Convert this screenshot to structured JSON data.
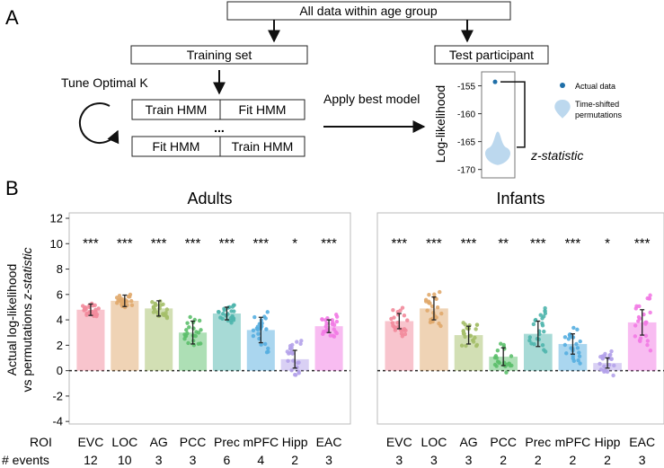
{
  "panel_a": {
    "label": "A",
    "top_box": "All data within age group",
    "training_box": "Training set",
    "test_box": "Test participant",
    "tune_label": "Tune Optimal K",
    "grid": {
      "r1c1": "Train HMM",
      "r1c2": "Fit HMM",
      "dots": "...",
      "r2c1": "Fit HMM",
      "r2c2": "Train HMM"
    },
    "apply_label": "Apply best model",
    "inset": {
      "ylabel": "Log-likelihood",
      "yticks": [
        -155,
        -160,
        -165,
        -170
      ],
      "ylim": [
        -171.5,
        -152.5
      ],
      "actual_value": -154.3,
      "zstat_label": "z-statistic",
      "legend": {
        "actual": "Actual data",
        "perm_line1": "Time-shifted",
        "perm_line2": "permutations"
      },
      "colors": {
        "actual": "#1f6fa8",
        "perm": "#bcd8ee"
      }
    }
  },
  "panel_b": {
    "label": "B",
    "ylabel_line1": "Actual log-likelihood",
    "ylabel_line2": "vs permutations",
    "ylabel_z": "z-statistic",
    "row_roi_label": "ROI",
    "row_events_label": "# events"
  },
  "chart_data": [
    {
      "type": "bar",
      "title": "Adults",
      "ylabel": "Actual log-likelihood vs permutations z-statistic",
      "ylim": [
        -4.2,
        12
      ],
      "yticks": [
        -4,
        -2,
        0,
        2,
        4,
        6,
        8,
        10,
        12
      ],
      "categories": [
        "EVC",
        "LOC",
        "AG",
        "PCC",
        "Prec",
        "mPFC",
        "Hipp",
        "EAC"
      ],
      "values": [
        4.8,
        5.5,
        4.9,
        3.0,
        4.5,
        3.2,
        0.9,
        3.5
      ],
      "error": [
        0.45,
        0.45,
        0.6,
        0.9,
        0.5,
        1.0,
        0.7,
        0.5
      ],
      "significance": [
        "***",
        "***",
        "***",
        "***",
        "***",
        "***",
        "*",
        "***"
      ],
      "events": [
        12,
        10,
        3,
        3,
        6,
        4,
        2,
        3
      ],
      "points_spread": [
        0.6,
        0.6,
        0.8,
        1.6,
        0.7,
        1.7,
        1.5,
        0.9
      ],
      "colors": [
        "#f28a9b",
        "#e0a86b",
        "#a5bf6a",
        "#5cbf6c",
        "#4fb5ad",
        "#55aee0",
        "#b4a2ea",
        "#f27ae4"
      ]
    },
    {
      "type": "bar",
      "title": "Infants",
      "ylim": [
        -4.2,
        12
      ],
      "categories": [
        "EVC",
        "LOC",
        "AG",
        "PCC",
        "Prec",
        "mPFC",
        "Hipp",
        "EAC"
      ],
      "values": [
        3.9,
        4.9,
        2.8,
        1.1,
        2.9,
        2.1,
        0.6,
        3.8
      ],
      "error": [
        0.6,
        0.9,
        0.7,
        0.7,
        1.0,
        0.8,
        0.4,
        1.0
      ],
      "significance": [
        "***",
        "***",
        "***",
        "**",
        "***",
        "***",
        "*",
        "***"
      ],
      "events": [
        3,
        3,
        3,
        2,
        2,
        2,
        2,
        3
      ],
      "points_spread": [
        1.3,
        1.5,
        1.4,
        1.3,
        1.9,
        1.5,
        0.9,
        1.9
      ],
      "colors": [
        "#f28a9b",
        "#e0a86b",
        "#a5bf6a",
        "#5cbf6c",
        "#4fb5ad",
        "#55aee0",
        "#b4a2ea",
        "#f27ae4"
      ]
    }
  ]
}
